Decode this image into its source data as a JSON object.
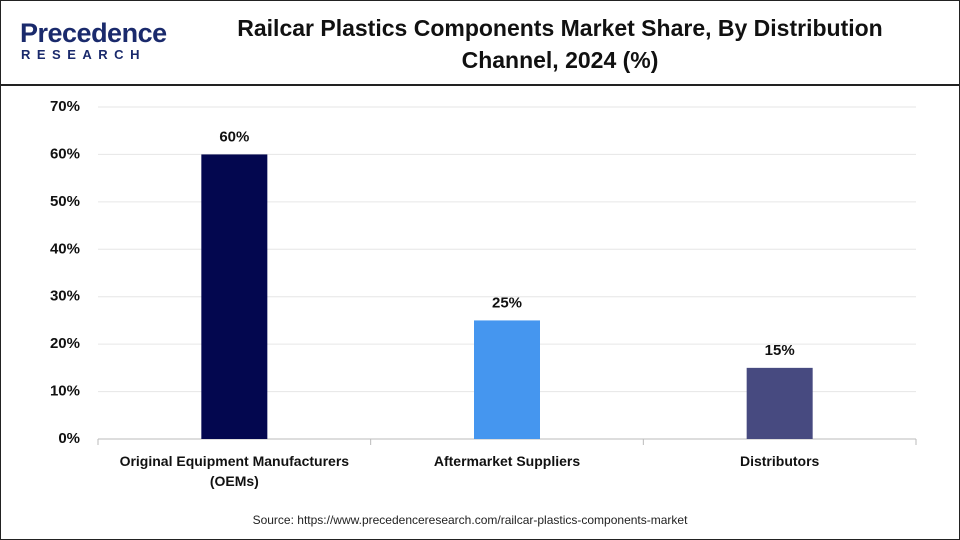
{
  "logo": {
    "name": "Precedence",
    "subtitle": "RESEARCH"
  },
  "chart_data": {
    "type": "bar",
    "title": "Railcar Plastics Components Market Share, By Distribution Channel, 2024 (%)",
    "categories": [
      "Original Equipment Manufacturers (OEMs)",
      "Aftermarket Suppliers",
      "Distributors"
    ],
    "values": [
      60,
      25,
      15
    ],
    "value_labels": [
      "60%",
      "25%",
      "15%"
    ],
    "colors": [
      "#03074f",
      "#4596ef",
      "#474a80"
    ],
    "ylim": [
      0,
      70
    ],
    "yticks": [
      {
        "value": 0,
        "label": "0%"
      },
      {
        "value": 10,
        "label": "10%"
      },
      {
        "value": 20,
        "label": "20%"
      },
      {
        "value": 30,
        "label": "30%"
      },
      {
        "value": 40,
        "label": "40%"
      },
      {
        "value": 50,
        "label": "50%"
      },
      {
        "value": 60,
        "label": "60%"
      },
      {
        "value": 70,
        "label": "70%"
      }
    ],
    "grid": true,
    "source": "Source: https://www.precedenceresearch.com/railcar-plastics-components-market"
  }
}
